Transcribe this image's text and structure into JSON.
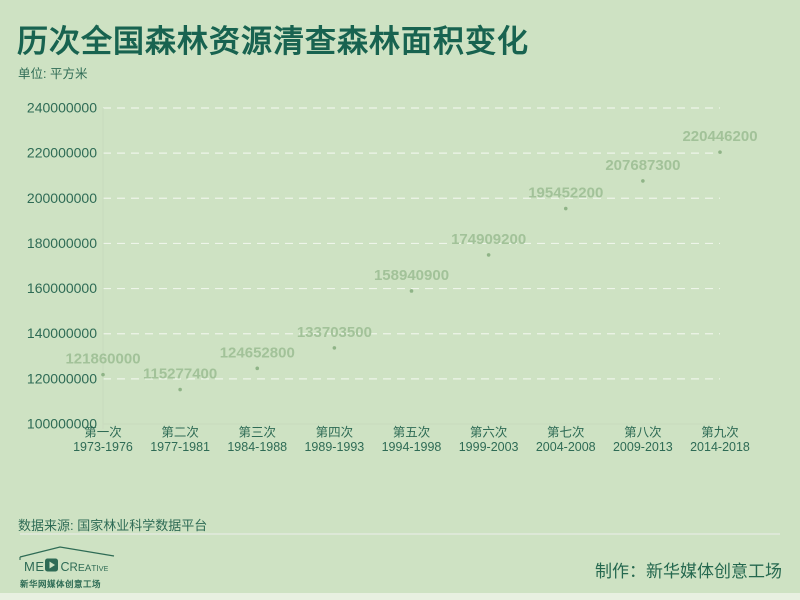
{
  "header": {
    "title": "历次全国森林资源清查森林面积变化",
    "unit_label": "单位: 平方米"
  },
  "chart_data": {
    "type": "scatter",
    "title": "历次全国森林资源清查森林面积变化",
    "unit": "平方米",
    "categories": [
      "第一次",
      "第二次",
      "第三次",
      "第四次",
      "第五次",
      "第六次",
      "第七次",
      "第八次",
      "第九次"
    ],
    "periods": [
      "1973-1976",
      "1977-1981",
      "1984-1988",
      "1989-1993",
      "1994-1998",
      "1999-2003",
      "2004-2008",
      "2009-2013",
      "2014-2018"
    ],
    "values": [
      121860000,
      115277400,
      124652800,
      133703500,
      158940900,
      174909200,
      195452200,
      207687300,
      220446200
    ],
    "ylim": [
      100000000,
      240000000
    ],
    "ytick_step": 20000000,
    "grid": "horizontal-dashed",
    "legend": "none",
    "data_labels": true
  },
  "footer": {
    "source_label": "数据来源: 国家林业科学数据平台",
    "credit_label": "制作：新华媒体创意工场",
    "logo": {
      "brand_prefix": "ME",
      "brand_suffix": "CREATIVE",
      "subtitle": "新华网媒体创意工场"
    }
  },
  "colors": {
    "background": "#cee2c3",
    "title_text": "#186350",
    "axis_text": "#2e6b55",
    "data_label": "#a2c299",
    "dot": "#8fb487",
    "gridline": "#eef5e9",
    "axis_line": "#c9dbbf",
    "divider": "#dde8d7",
    "bottom_strip": "#e8f0e1",
    "logo_green": "#2e6b55"
  }
}
